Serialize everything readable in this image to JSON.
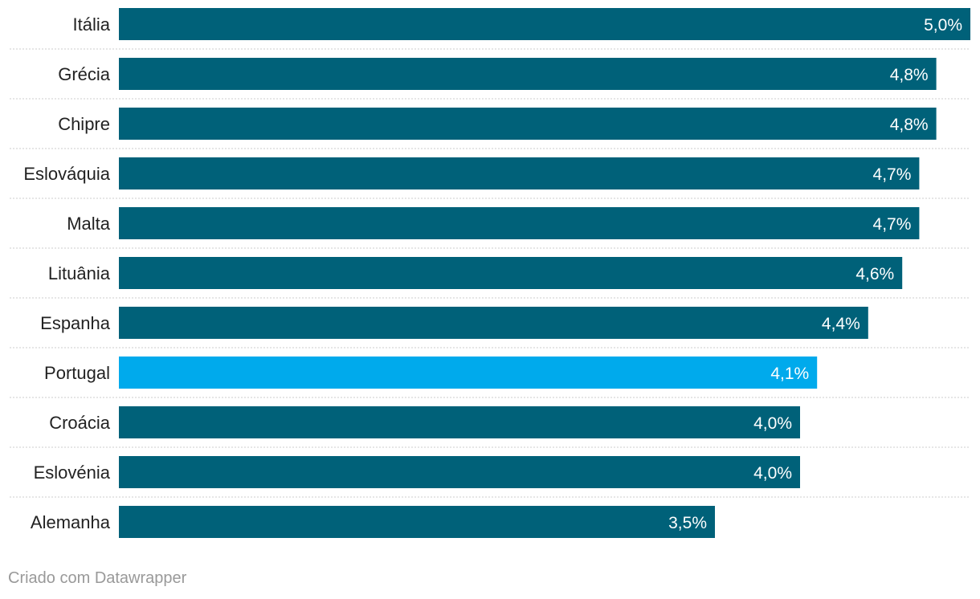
{
  "chart_data": {
    "type": "bar",
    "orientation": "horizontal",
    "categories": [
      "Itália",
      "Grécia",
      "Chipre",
      "Eslováquia",
      "Malta",
      "Lituânia",
      "Espanha",
      "Portugal",
      "Croácia",
      "Eslovénia",
      "Alemanha"
    ],
    "values": [
      5.0,
      4.8,
      4.8,
      4.7,
      4.7,
      4.6,
      4.4,
      4.1,
      4.0,
      4.0,
      3.5
    ],
    "value_labels": [
      "5,0%",
      "4,8%",
      "4,8%",
      "4,7%",
      "4,7%",
      "4,6%",
      "4,4%",
      "4,1%",
      "4,0%",
      "4,0%",
      "3,5%"
    ],
    "highlight": "Portugal",
    "xlim": [
      0,
      5.0
    ],
    "title": "",
    "xlabel": "",
    "ylabel": "",
    "grid": false
  },
  "colors": {
    "bar": "#006179",
    "highlight": "#00aaec",
    "separator": "#cccccc"
  },
  "footer": {
    "credit": "Criado com Datawrapper"
  }
}
